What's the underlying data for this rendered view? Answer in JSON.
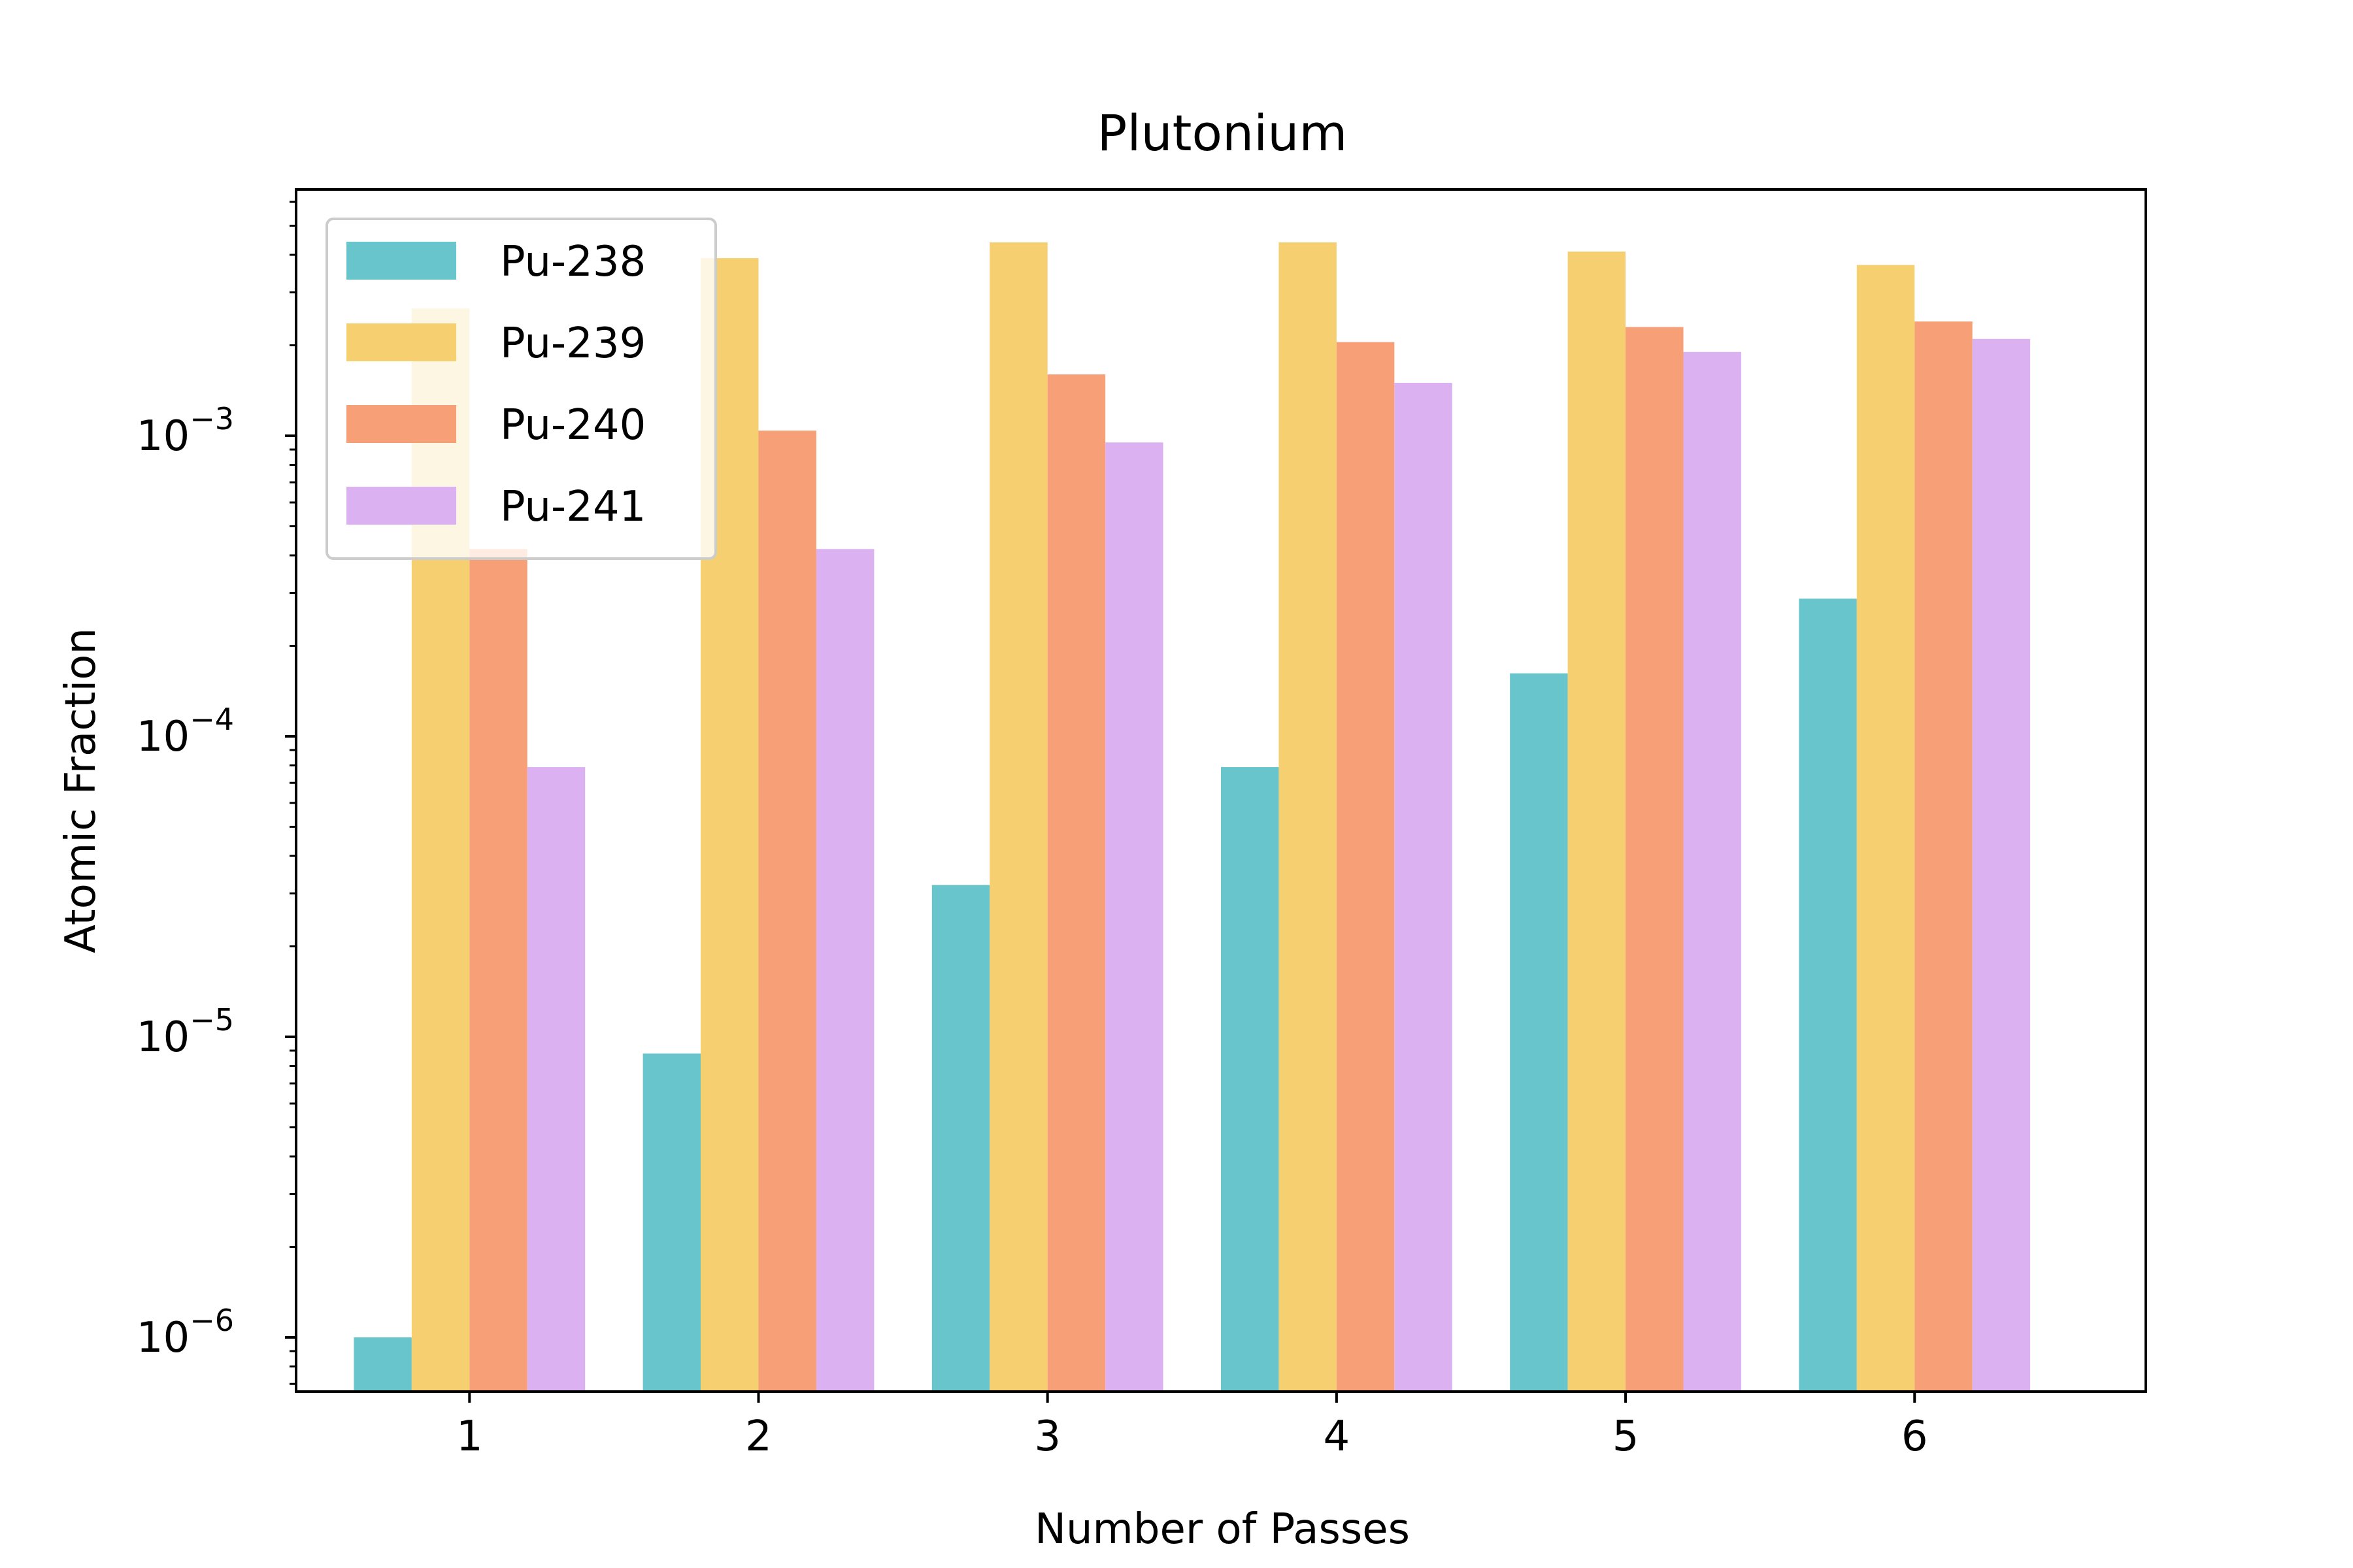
{
  "chart_data": {
    "type": "bar",
    "title": "Plutonium",
    "xlabel": "Number of Passes",
    "ylabel": "Atomic Fraction",
    "yscale": "log",
    "ylim": [
      6.6e-07,
      0.0066
    ],
    "categories": [
      "1",
      "2",
      "3",
      "4",
      "5",
      "6"
    ],
    "y_ticks": [
      {
        "value": 1e-06,
        "base": "10",
        "exp": "−6"
      },
      {
        "value": 1e-05,
        "base": "10",
        "exp": "−5"
      },
      {
        "value": 0.0001,
        "base": "10",
        "exp": "−4"
      },
      {
        "value": 0.001,
        "base": "10",
        "exp": "−3"
      }
    ],
    "series": [
      {
        "name": "Pu-238",
        "color": "#67c5cb",
        "values": [
          1e-06,
          8.8e-06,
          3.2e-05,
          7.9e-05,
          0.000162,
          0.000287
        ]
      },
      {
        "name": "Pu-239",
        "color": "#f5cf70",
        "values": [
          0.00265,
          0.0039,
          0.0044,
          0.0044,
          0.0041,
          0.0037
        ]
      },
      {
        "name": "Pu-240",
        "color": "#f79f76",
        "values": [
          0.00042,
          0.00104,
          0.0016,
          0.00205,
          0.0023,
          0.0024
        ]
      },
      {
        "name": "Pu-241",
        "color": "#dcb1f1",
        "values": [
          7.9e-05,
          0.00042,
          0.00095,
          0.0015,
          0.0019,
          0.0021
        ]
      }
    ],
    "legend": {
      "position": "upper-left"
    },
    "grid": false
  }
}
